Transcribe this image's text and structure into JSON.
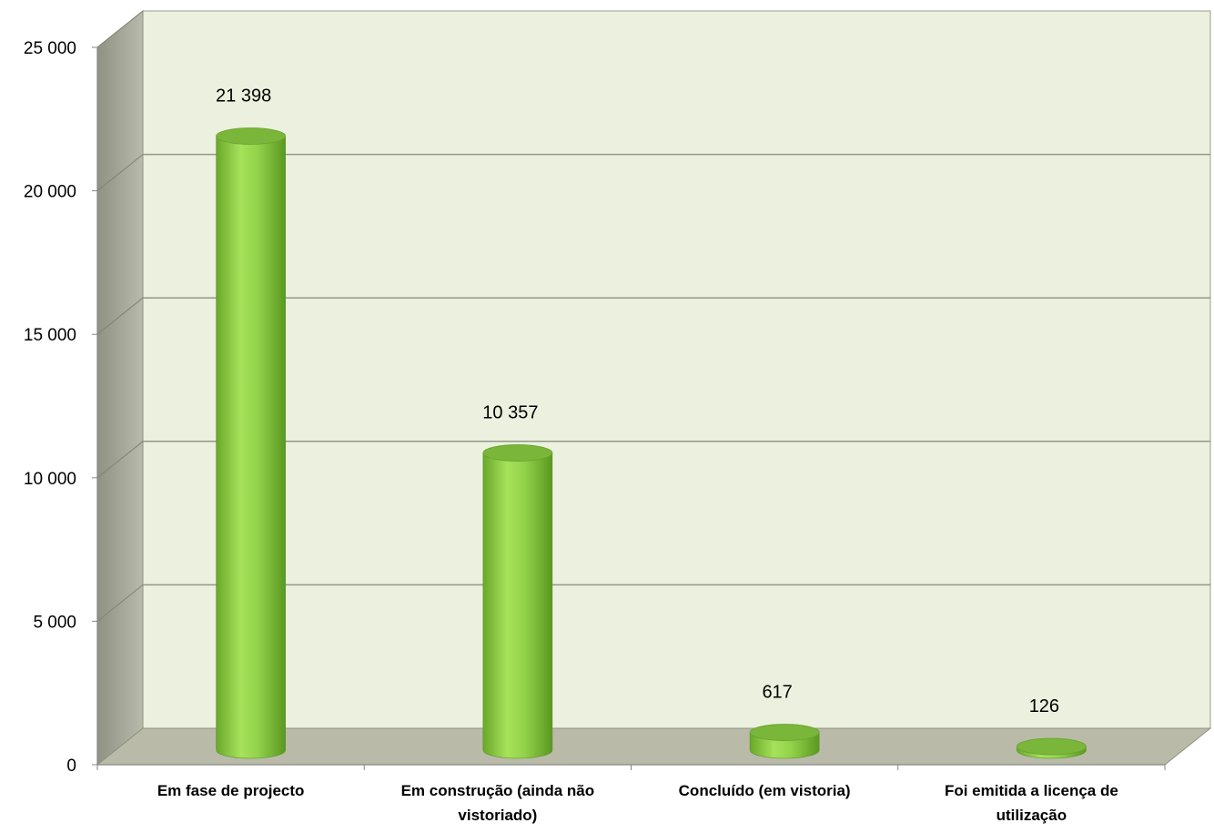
{
  "chart_data": {
    "type": "bar",
    "style": "3d-cylinder",
    "categories": [
      [
        "Em fase de projecto"
      ],
      [
        "Em construção (ainda não",
        "vistoriado)"
      ],
      [
        "Concluído (em vistoria)"
      ],
      [
        "Foi emitida a licença de",
        "utilização"
      ]
    ],
    "values": [
      21398,
      10357,
      617,
      126
    ],
    "data_labels": [
      "21 398",
      "10 357",
      "617",
      "126"
    ],
    "y_tick_labels": [
      "0",
      "5 000",
      "10 000",
      "15 000",
      "20 000",
      "25 000"
    ],
    "ylim": [
      0,
      25000
    ],
    "grid": true,
    "legend": "none",
    "colors": {
      "wall": "#ebf1de",
      "side_wall": "#a5a797",
      "floor": "#b9bba8",
      "grid": "#8f9982",
      "bar_light": "#9edc52",
      "bar_dark": "#5f9e22",
      "bar_top": "#79b63a"
    }
  }
}
